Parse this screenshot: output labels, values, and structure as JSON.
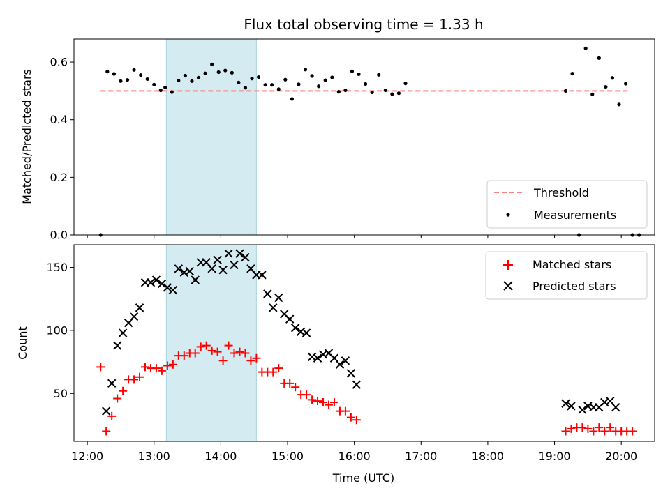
{
  "chart_data": [
    {
      "type": "scatter",
      "title": "Flux total observing time = 1.33 h",
      "xlabel": "",
      "ylabel": "Matched/Predicted stars",
      "ylim": [
        0,
        0.68
      ],
      "yticks": [
        0.0,
        0.2,
        0.4,
        0.6
      ],
      "ytick_labels": [
        "0.0",
        "0.2",
        "0.4",
        "0.6"
      ],
      "xlim": [
        "11:48",
        "20:30"
      ],
      "xticks": [
        "12:00",
        "13:00",
        "14:00",
        "15:00",
        "16:00",
        "17:00",
        "18:00",
        "19:00",
        "20:00"
      ],
      "shaded_span": [
        "13:11",
        "14:32"
      ],
      "shaded_color": "#d4ebf1",
      "threshold": {
        "name": "Threshold",
        "y": 0.5,
        "x_start": "12:12",
        "x_end": "20:06",
        "color": "#ff7f7f"
      },
      "legend": {
        "placement": "lower-right",
        "entries": [
          "Threshold",
          "Measurements"
        ]
      },
      "series": [
        {
          "name": "Measurements",
          "marker": "dot",
          "color": "#000000",
          "points": [
            [
              "12:12",
              0.0
            ],
            [
              "12:18",
              0.567
            ],
            [
              "12:24",
              0.559
            ],
            [
              "12:30",
              0.534
            ],
            [
              "12:36",
              0.538
            ],
            [
              "12:42",
              0.573
            ],
            [
              "12:48",
              0.555
            ],
            [
              "12:54",
              0.541
            ],
            [
              "13:00",
              0.522
            ],
            [
              "13:06",
              0.502
            ],
            [
              "13:10",
              0.512
            ],
            [
              "13:16",
              0.496
            ],
            [
              "13:22",
              0.536
            ],
            [
              "13:28",
              0.553
            ],
            [
              "13:34",
              0.534
            ],
            [
              "13:40",
              0.546
            ],
            [
              "13:46",
              0.561
            ],
            [
              "13:52",
              0.592
            ],
            [
              "13:58",
              0.565
            ],
            [
              "14:04",
              0.571
            ],
            [
              "14:10",
              0.563
            ],
            [
              "14:16",
              0.529
            ],
            [
              "14:22",
              0.511
            ],
            [
              "14:28",
              0.543
            ],
            [
              "14:34",
              0.548
            ],
            [
              "14:40",
              0.521
            ],
            [
              "14:46",
              0.521
            ],
            [
              "14:52",
              0.506
            ],
            [
              "14:58",
              0.539
            ],
            [
              "15:04",
              0.472
            ],
            [
              "15:10",
              0.523
            ],
            [
              "15:16",
              0.574
            ],
            [
              "15:22",
              0.552
            ],
            [
              "15:28",
              0.516
            ],
            [
              "15:34",
              0.537
            ],
            [
              "15:40",
              0.547
            ],
            [
              "15:46",
              0.497
            ],
            [
              "15:52",
              0.502
            ],
            [
              "15:58",
              0.568
            ],
            [
              "16:04",
              0.558
            ],
            [
              "16:10",
              0.524
            ],
            [
              "16:16",
              0.495
            ],
            [
              "16:22",
              0.556
            ],
            [
              "16:28",
              0.502
            ],
            [
              "16:34",
              0.489
            ],
            [
              "16:40",
              0.492
            ],
            [
              "16:46",
              0.526
            ],
            [
              "19:10",
              0.5
            ],
            [
              "19:16",
              0.56
            ],
            [
              "19:22",
              0.0
            ],
            [
              "19:28",
              0.648
            ],
            [
              "19:34",
              0.488
            ],
            [
              "19:40",
              0.614
            ],
            [
              "19:46",
              0.514
            ],
            [
              "19:52",
              0.545
            ],
            [
              "19:58",
              0.453
            ],
            [
              "20:04",
              0.525
            ],
            [
              "20:10",
              0.0
            ],
            [
              "20:16",
              0.0
            ]
          ]
        }
      ]
    },
    {
      "type": "scatter",
      "title": "",
      "xlabel": "Time (UTC)",
      "ylabel": "Count",
      "ylim": [
        12,
        168
      ],
      "yticks": [
        50,
        100,
        150
      ],
      "ytick_labels": [
        "50",
        "100",
        "150"
      ],
      "xlim": [
        "11:48",
        "20:30"
      ],
      "xticks": [
        "12:00",
        "13:00",
        "14:00",
        "15:00",
        "16:00",
        "17:00",
        "18:00",
        "19:00",
        "20:00"
      ],
      "xtick_labels": [
        "12:00",
        "13:00",
        "14:00",
        "15:00",
        "16:00",
        "17:00",
        "18:00",
        "19:00",
        "20:00"
      ],
      "shaded_span": [
        "13:11",
        "14:32"
      ],
      "shaded_color": "#d4ebf1",
      "legend": {
        "placement": "upper-right",
        "entries": [
          "Matched stars",
          "Predicted stars"
        ]
      },
      "series": [
        {
          "name": "Matched stars",
          "marker": "plus",
          "color": "#ff0000",
          "points": [
            [
              "12:12",
              71
            ],
            [
              "12:17",
              20
            ],
            [
              "12:22",
              32
            ],
            [
              "12:27",
              46
            ],
            [
              "12:32",
              52
            ],
            [
              "12:37",
              61
            ],
            [
              "12:42",
              61
            ],
            [
              "12:47",
              63
            ],
            [
              "12:52",
              71
            ],
            [
              "12:57",
              70
            ],
            [
              "13:02",
              70
            ],
            [
              "13:07",
              68
            ],
            [
              "13:12",
              72
            ],
            [
              "13:17",
              73
            ],
            [
              "13:22",
              80
            ],
            [
              "13:27",
              80
            ],
            [
              "13:32",
              82
            ],
            [
              "13:37",
              82
            ],
            [
              "13:42",
              87
            ],
            [
              "13:47",
              88
            ],
            [
              "13:52",
              84
            ],
            [
              "13:57",
              83
            ],
            [
              "14:02",
              76
            ],
            [
              "14:07",
              88
            ],
            [
              "14:12",
              82
            ],
            [
              "14:17",
              83
            ],
            [
              "14:22",
              82
            ],
            [
              "14:27",
              76
            ],
            [
              "14:32",
              78
            ],
            [
              "14:37",
              67
            ],
            [
              "14:42",
              67
            ],
            [
              "14:47",
              67
            ],
            [
              "14:52",
              70
            ],
            [
              "14:57",
              58
            ],
            [
              "15:02",
              58
            ],
            [
              "15:07",
              55
            ],
            [
              "15:12",
              49
            ],
            [
              "15:17",
              49
            ],
            [
              "15:22",
              45
            ],
            [
              "15:27",
              44
            ],
            [
              "15:32",
              43
            ],
            [
              "15:37",
              41
            ],
            [
              "15:42",
              43
            ],
            [
              "15:47",
              36
            ],
            [
              "15:52",
              36
            ],
            [
              "15:57",
              31
            ],
            [
              "16:02",
              29
            ],
            [
              "19:10",
              20
            ],
            [
              "19:15",
              22
            ],
            [
              "19:20",
              23
            ],
            [
              "19:25",
              23
            ],
            [
              "19:30",
              22
            ],
            [
              "19:35",
              20
            ],
            [
              "19:40",
              23
            ],
            [
              "19:45",
              20
            ],
            [
              "19:50",
              23
            ],
            [
              "19:55",
              20
            ],
            [
              "20:00",
              20
            ],
            [
              "20:05",
              20
            ],
            [
              "20:10",
              20
            ]
          ]
        },
        {
          "name": "Predicted stars",
          "marker": "x",
          "color": "#000000",
          "points": [
            [
              "12:17",
              36
            ],
            [
              "12:22",
              58
            ],
            [
              "12:27",
              88
            ],
            [
              "12:32",
              98
            ],
            [
              "12:37",
              106
            ],
            [
              "12:42",
              111
            ],
            [
              "12:47",
              118
            ],
            [
              "12:52",
              138
            ],
            [
              "12:57",
              138
            ],
            [
              "13:02",
              140
            ],
            [
              "13:07",
              137
            ],
            [
              "13:12",
              134
            ],
            [
              "13:17",
              132
            ],
            [
              "13:22",
              149
            ],
            [
              "13:27",
              146
            ],
            [
              "13:32",
              147
            ],
            [
              "13:37",
              140
            ],
            [
              "13:42",
              154
            ],
            [
              "13:47",
              154
            ],
            [
              "13:52",
              149
            ],
            [
              "13:57",
              156
            ],
            [
              "14:02",
              148
            ],
            [
              "14:07",
              161
            ],
            [
              "14:12",
              152
            ],
            [
              "14:17",
              161
            ],
            [
              "14:22",
              158
            ],
            [
              "14:27",
              149
            ],
            [
              "14:32",
              144
            ],
            [
              "14:37",
              144
            ],
            [
              "14:42",
              129
            ],
            [
              "14:47",
              118
            ],
            [
              "14:52",
              126
            ],
            [
              "14:57",
              113
            ],
            [
              "15:02",
              109
            ],
            [
              "15:07",
              102
            ],
            [
              "15:12",
              99
            ],
            [
              "15:17",
              98
            ],
            [
              "15:22",
              79
            ],
            [
              "15:27",
              78
            ],
            [
              "15:32",
              81
            ],
            [
              "15:37",
              82
            ],
            [
              "15:42",
              78
            ],
            [
              "15:47",
              73
            ],
            [
              "15:52",
              76
            ],
            [
              "15:57",
              66
            ],
            [
              "16:02",
              57
            ],
            [
              "19:10",
              42
            ],
            [
              "19:15",
              40
            ],
            [
              "19:25",
              37
            ],
            [
              "19:30",
              40
            ],
            [
              "19:35",
              39
            ],
            [
              "19:40",
              39
            ],
            [
              "19:45",
              43
            ],
            [
              "19:50",
              44
            ],
            [
              "19:55",
              39
            ]
          ]
        }
      ]
    }
  ]
}
